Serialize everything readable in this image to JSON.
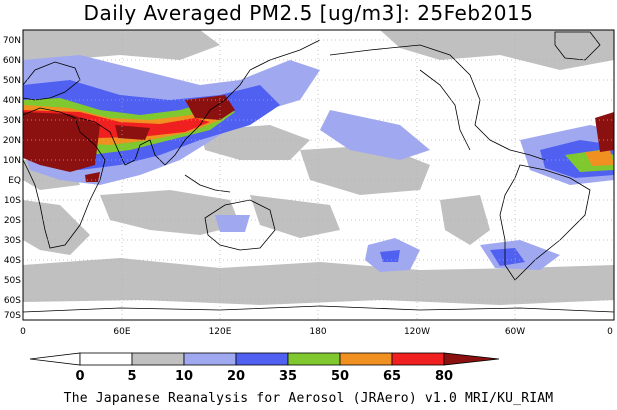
{
  "title": "Daily Averaged PM2.5 [ug/m3]: 25Feb2015",
  "latitude_labels": [
    "70N",
    "60N",
    "50N",
    "40N",
    "30N",
    "20N",
    "10N",
    "EQ",
    "10S",
    "20S",
    "30S",
    "40S",
    "50S",
    "60S",
    "70S"
  ],
  "longitude_labels": [
    "0",
    "60E",
    "120E",
    "180",
    "120W",
    "60W",
    "0"
  ],
  "colorbar": {
    "levels": [
      "0",
      "5",
      "10",
      "20",
      "35",
      "50",
      "65",
      "80"
    ],
    "colors": [
      "#ffffff",
      "#c0c0c0",
      "#a0a8f0",
      "#5060f0",
      "#80c830",
      "#f09020",
      "#f02020",
      "#8b1010"
    ]
  },
  "footer": "The Japanese Reanalysis for Aerosol (JRAero) v1.0 MRI/KU_RIAM"
}
